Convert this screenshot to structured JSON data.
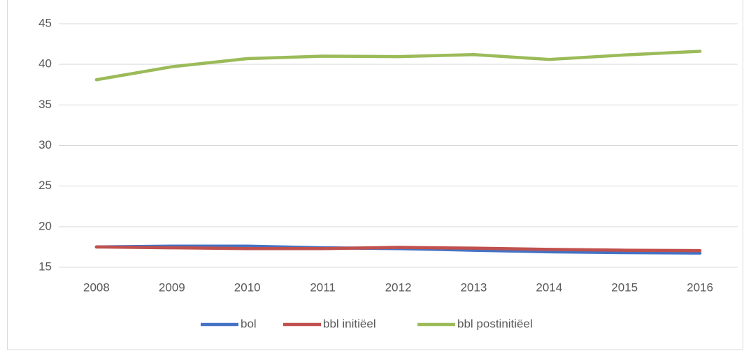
{
  "chart_data": {
    "type": "line",
    "categories": [
      "2008",
      "2009",
      "2010",
      "2011",
      "2012",
      "2013",
      "2014",
      "2015",
      "2016"
    ],
    "series": [
      {
        "name": "bol",
        "color": "#4472c4",
        "values": [
          17.5,
          17.6,
          17.6,
          17.4,
          17.3,
          17.1,
          16.9,
          16.8,
          16.75
        ]
      },
      {
        "name": "bbl initiëel",
        "color": "#c0504d",
        "values": [
          17.5,
          17.4,
          17.3,
          17.3,
          17.45,
          17.35,
          17.2,
          17.1,
          17.05
        ]
      },
      {
        "name": "bbl postinitiëel",
        "color": "#9bbb59",
        "values": [
          38.1,
          39.7,
          40.7,
          41.0,
          40.95,
          41.2,
          40.6,
          41.15,
          41.6
        ]
      }
    ],
    "ylim": [
      15,
      45
    ],
    "yticks": [
      15,
      20,
      25,
      30,
      35,
      40,
      45
    ],
    "grid": true,
    "legend": "bottom"
  }
}
